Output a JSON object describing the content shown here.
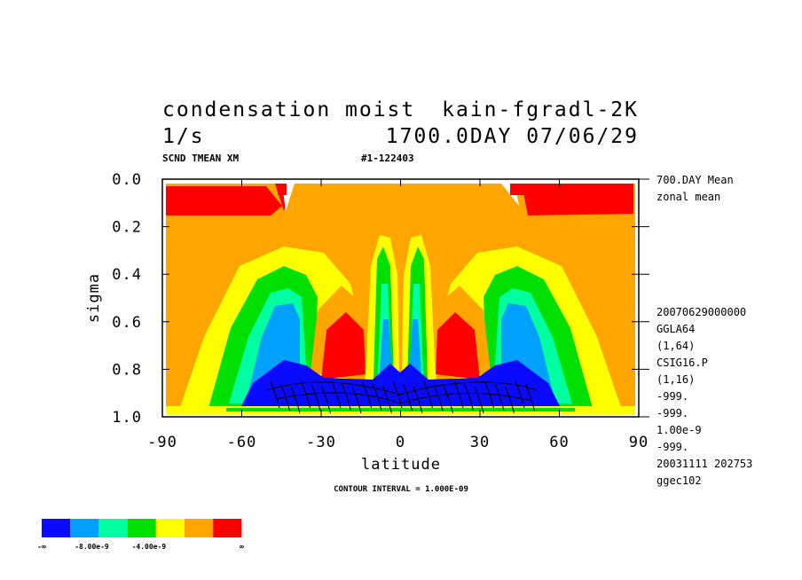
{
  "chart_data": {
    "type": "contour",
    "title": "condensation moist",
    "experiment": "kain-fgradl-2K",
    "units": "1/s",
    "time_label": "1700.0DAY 07/06/29",
    "variable_label": "SCND TMEAN XM",
    "run_label": "#1-122403",
    "xlabel": "latitude",
    "ylabel": "sigma",
    "xlim": [
      -90,
      90
    ],
    "xticks": [
      -90,
      -60,
      -30,
      0,
      30,
      60,
      90
    ],
    "ylim": [
      0,
      1
    ],
    "y_reversed": true,
    "yticks": [
      {
        "value": 0,
        "label": "0.0"
      },
      0.2,
      0.4,
      0.6,
      0.8,
      {
        "value": 1,
        "label": "1.0"
      }
    ],
    "contour_interval": "CONTOUR INTERVAL = 1.000E-09",
    "info": [
      "700.DAY Mean",
      "zonal mean"
    ],
    "meta": [
      "20070629000000",
      "GGLA64",
      "(1,64)",
      "CSIG16.P",
      "(1,16)",
      "-999.",
      "-999.",
      "1.00e-9",
      "-999.",
      "20031111 202753",
      "ggec102"
    ],
    "colorbar": {
      "colors": [
        "#0a0aff",
        "#00a0ff",
        "#00ffa0",
        "#00e000",
        "#ffff00",
        "#ffa500",
        "#ff0000"
      ],
      "labels": [
        "-∞",
        "-8.00e-9",
        "-4.00e-9",
        "∞"
      ]
    }
  }
}
